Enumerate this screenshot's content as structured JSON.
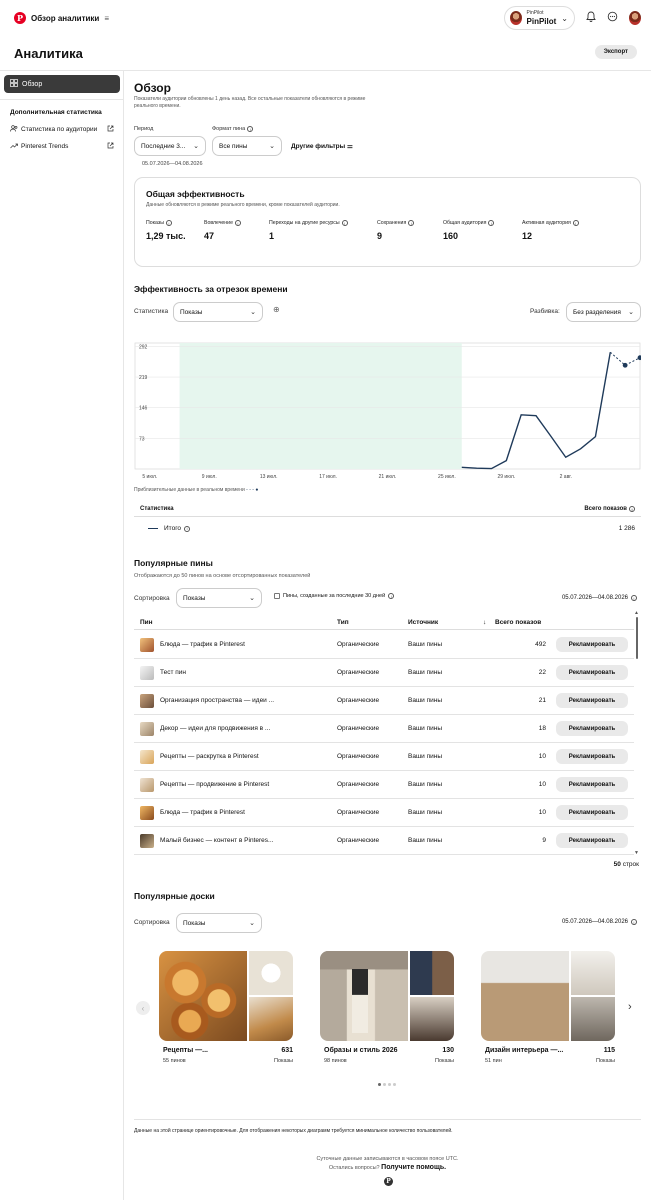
{
  "topbar": {
    "title": "Обзор аналитики",
    "account_small": "PinPilot",
    "account_name": "PinPilot"
  },
  "page": {
    "title": "Аналитика",
    "export_label": "Экспорт"
  },
  "sidebar": {
    "overview_label": "Обзор",
    "section_title": "Дополнительная статистика",
    "items": [
      {
        "label": "Статистика по аудитории"
      },
      {
        "label": "Pinterest Trends"
      }
    ]
  },
  "overview": {
    "title": "Обзор",
    "subtitle": "Показатели аудитории обновлены 1 день назад. Все остальные показатели обновляются в режиме реального времени.",
    "filters": {
      "period_label": "Период",
      "period_value": "Последние 3...",
      "format_label": "Формат пина",
      "format_value": "Все пины",
      "other_filters": "Другие фильтры",
      "date_range": "05.07.2026—04.08.2026"
    }
  },
  "performance": {
    "title": "Общая эффективность",
    "subtitle": "Данные обновляются в режиме реального времени, кроме показателей аудитории.",
    "metrics": [
      {
        "label": "Показы",
        "value": "1,29 тыс."
      },
      {
        "label": "Вовлечение",
        "value": "47"
      },
      {
        "label": "Переходы на другие ресурсы",
        "value": "1"
      },
      {
        "label": "Сохранения",
        "value": "9"
      },
      {
        "label": "Общая аудитория",
        "value": "160"
      },
      {
        "label": "Активная аудитория",
        "value": "12"
      }
    ]
  },
  "timeseries": {
    "title": "Эффективность за отрезок времени",
    "stat_label": "Статистика",
    "stat_value": "Показы",
    "split_label": "Разбивка:",
    "split_value": "Без разделения",
    "approx_note": "Приблизительные данные в реальном времени",
    "table_header_left": "Статистика",
    "table_header_right": "Всего показов",
    "total_label": "Итого",
    "total_value": "1 286"
  },
  "chart_data": {
    "type": "line",
    "title": "",
    "xlabel": "",
    "ylabel": "",
    "ylim": [
      0,
      300
    ],
    "yticks": [
      73,
      146,
      219,
      292
    ],
    "xticks": [
      "5 июл.",
      "9 июл.",
      "13 июл.",
      "17 июл.",
      "21 июл.",
      "25 июл.",
      "29 июл.",
      "2 авг."
    ],
    "xtick_days": [
      1,
      5,
      9,
      13,
      17,
      21,
      25,
      29
    ],
    "x_days": [
      22,
      23,
      24,
      25,
      26,
      27,
      28,
      29,
      30,
      31,
      32
    ],
    "values": [
      4,
      2,
      1,
      20,
      129,
      127,
      78,
      28,
      48,
      77,
      278
    ],
    "estimated": {
      "x_days": [
        32,
        33,
        34
      ],
      "values": [
        278,
        247,
        265
      ]
    },
    "highlight_range_days": [
      3,
      22
    ],
    "highlight_color": "#e6f6ee",
    "line_color": "#1f3a5a",
    "grid": true
  },
  "pins": {
    "title": "Популярные пины",
    "subtitle": "Отображаются до 50 пинов на основе отсортированных показателей",
    "sort_label": "Сортировка",
    "sort_value": "Показы",
    "checkbox_label": "Пины, созданные за последние 30 дней",
    "date_range": "05.07.2026—04.08.2026",
    "columns": {
      "pin": "Пин",
      "type": "Тип",
      "source": "Источник",
      "total": "Всего показов"
    },
    "promote_label": "Рекламировать",
    "rows": [
      {
        "name": "Блюда — трафик в Pinterest",
        "type": "Органические",
        "source": "Ваши пины",
        "value": "492"
      },
      {
        "name": "Тест пин",
        "type": "Органические",
        "source": "Ваши пины",
        "value": "22"
      },
      {
        "name": "Организация пространства — идеи ...",
        "type": "Органические",
        "source": "Ваши пины",
        "value": "21"
      },
      {
        "name": "Декор — идеи для продвижения в ...",
        "type": "Органические",
        "source": "Ваши пины",
        "value": "18"
      },
      {
        "name": "Рецепты — раскрутка в Pinterest",
        "type": "Органические",
        "source": "Ваши пины",
        "value": "10"
      },
      {
        "name": "Рецепты — продвижение в Pinterest",
        "type": "Органические",
        "source": "Ваши пины",
        "value": "10"
      },
      {
        "name": "Блюда — трафик в Pinterest",
        "type": "Органические",
        "source": "Ваши пины",
        "value": "10"
      },
      {
        "name": "Малый бизнес — контент в Pinteres...",
        "type": "Органические",
        "source": "Ваши пины",
        "value": "9"
      }
    ],
    "rows_count": "50",
    "rows_word": "строк"
  },
  "boards": {
    "title": "Популярные доски",
    "sort_label": "Сортировка",
    "sort_value": "Показы",
    "date_range": "05.07.2026—04.08.2026",
    "items": [
      {
        "title": "Рецепты —...",
        "pins": "55 пинов",
        "value": "631",
        "metric": "Показы"
      },
      {
        "title": "Образы и стиль 2026",
        "pins": "98 пинов",
        "value": "130",
        "metric": "Показы"
      },
      {
        "title": "Дизайн интерьера —...",
        "pins": "51 пин",
        "value": "115",
        "metric": "Показы"
      }
    ]
  },
  "footer": {
    "disclaimer": "Данные на этой странице ориентировочные. Для отображения некоторых диаграмм требуется минимальное количество пользователей.",
    "utc_note": "Суточные данные записываются в часовом поясе UTC.",
    "question": "Остались вопросы?",
    "help": "Получите помощь."
  },
  "colors": {
    "brand": "#e60023",
    "chart_line": "#1f3a5a",
    "highlight": "#e6f6ee"
  }
}
